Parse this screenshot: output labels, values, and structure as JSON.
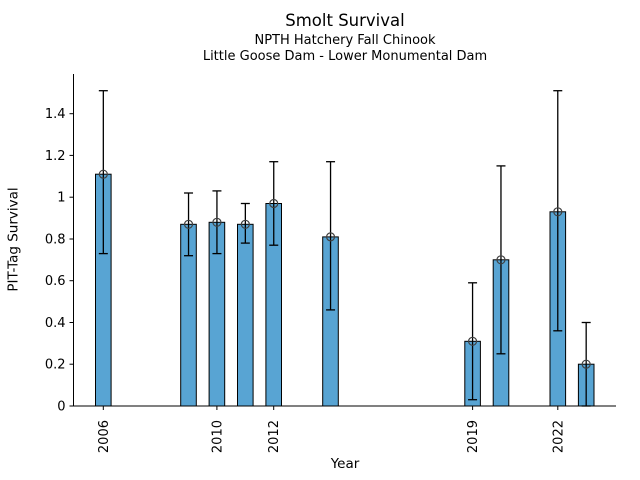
{
  "chart_data": {
    "type": "bar",
    "title": "Smolt Survival",
    "subtitle": [
      "NPTH Hatchery Fall Chinook",
      "Little Goose Dam - Lower Monumental Dam"
    ],
    "xlabel": "Year",
    "ylabel": "PIT-Tag Survival",
    "series": [
      {
        "name": "PIT-Tag Survival",
        "x": [
          2006,
          2009,
          2010,
          2011,
          2012,
          2014,
          2019,
          2020,
          2022,
          2023
        ],
        "values": [
          1.11,
          0.87,
          0.88,
          0.87,
          0.97,
          0.81,
          0.31,
          0.7,
          0.93,
          0.2
        ],
        "error_low": [
          0.73,
          0.72,
          0.73,
          0.78,
          0.77,
          0.46,
          0.03,
          0.25,
          0.36,
          0.0
        ],
        "error_high": [
          1.51,
          1.02,
          1.03,
          0.97,
          1.17,
          1.17,
          0.59,
          1.15,
          1.51,
          0.4
        ]
      }
    ],
    "xtick_positions": [
      2006,
      2010,
      2012,
      2019,
      2022
    ],
    "xtick_labels": [
      "2006",
      "2010",
      "2012",
      "2019",
      "2022"
    ],
    "ytick_positions": [
      0,
      0.2,
      0.4,
      0.6,
      0.8,
      1.0,
      1.2,
      1.4
    ],
    "ytick_labels": [
      "0",
      "0.2",
      "0.4",
      "0.6",
      "0.8",
      "1",
      "1.2",
      "1.4"
    ],
    "xlim": [
      2004.95,
      2024.05
    ],
    "ylim": [
      0,
      1.59
    ],
    "bar_width_years": 0.55,
    "grid": false,
    "legend": null,
    "marker": "open-circle",
    "colors": {
      "bar_fill": "#58A4D3",
      "bar_edge": "#000000",
      "error_bar": "#000000",
      "marker_edge": "#404040",
      "axis": "#000000",
      "background": "#FFFFFF"
    }
  }
}
